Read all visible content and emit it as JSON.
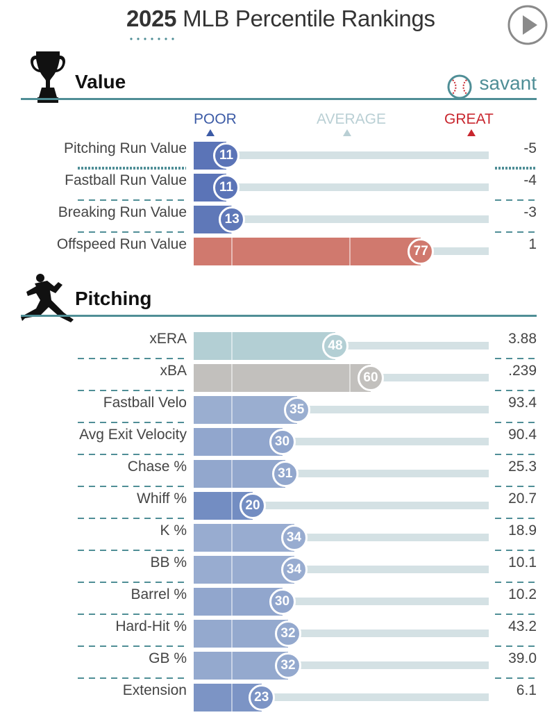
{
  "header": {
    "year": "2025",
    "title_rest": " MLB Percentile Rankings",
    "play_icon": "play-icon"
  },
  "brand": {
    "name": "savant",
    "icon": "baseball-icon",
    "color": "#4f8e96"
  },
  "scale": {
    "poor": "POOR",
    "average": "AVERAGE",
    "great": "GREAT",
    "poor_color": "#3c5ba6",
    "average_color": "#b9cfd4",
    "great_color": "#c8262e"
  },
  "sections": [
    {
      "title": "Value",
      "icon": "trophy-icon"
    },
    {
      "title": "Pitching",
      "icon": "pitcher-icon"
    }
  ],
  "chart_data": {
    "type": "bar",
    "title": "2025 MLB Percentile Rankings",
    "xlim": [
      0,
      100
    ],
    "groups": [
      {
        "name": "Value",
        "rows": [
          {
            "label": "Pitching Run Value",
            "percentile": 11,
            "value": "-5",
            "color": "#5b74b7"
          },
          {
            "label": "Fastball Run Value",
            "percentile": 11,
            "value": "-4",
            "color": "#5b74b7"
          },
          {
            "label": "Breaking Run Value",
            "percentile": 13,
            "value": "-3",
            "color": "#5f78b8"
          },
          {
            "label": "Offspeed Run Value",
            "percentile": 77,
            "value": "1",
            "color": "#d0796e"
          }
        ]
      },
      {
        "name": "Pitching",
        "rows": [
          {
            "label": "xERA",
            "percentile": 48,
            "value": "3.88",
            "color": "#b3cfd4"
          },
          {
            "label": "xBA",
            "percentile": 60,
            "value": ".239",
            "color": "#c2c0bd"
          },
          {
            "label": "Fastball Velo",
            "percentile": 35,
            "value": "93.4",
            "color": "#9aaed0"
          },
          {
            "label": "Avg Exit Velocity",
            "percentile": 30,
            "value": "90.4",
            "color": "#91a6cd"
          },
          {
            "label": "Chase %",
            "percentile": 31,
            "value": "25.3",
            "color": "#92a7cd"
          },
          {
            "label": "Whiff %",
            "percentile": 20,
            "value": "20.7",
            "color": "#738dc2"
          },
          {
            "label": "K %",
            "percentile": 34,
            "value": "18.9",
            "color": "#98acd0"
          },
          {
            "label": "BB %",
            "percentile": 34,
            "value": "10.1",
            "color": "#98acd0"
          },
          {
            "label": "Barrel %",
            "percentile": 30,
            "value": "10.2",
            "color": "#91a6cd"
          },
          {
            "label": "Hard-Hit %",
            "percentile": 32,
            "value": "43.2",
            "color": "#94a9ce"
          },
          {
            "label": "GB %",
            "percentile": 32,
            "value": "39.0",
            "color": "#94a9ce"
          },
          {
            "label": "Extension",
            "percentile": 23,
            "value": "6.1",
            "color": "#7c94c5"
          }
        ]
      }
    ]
  }
}
